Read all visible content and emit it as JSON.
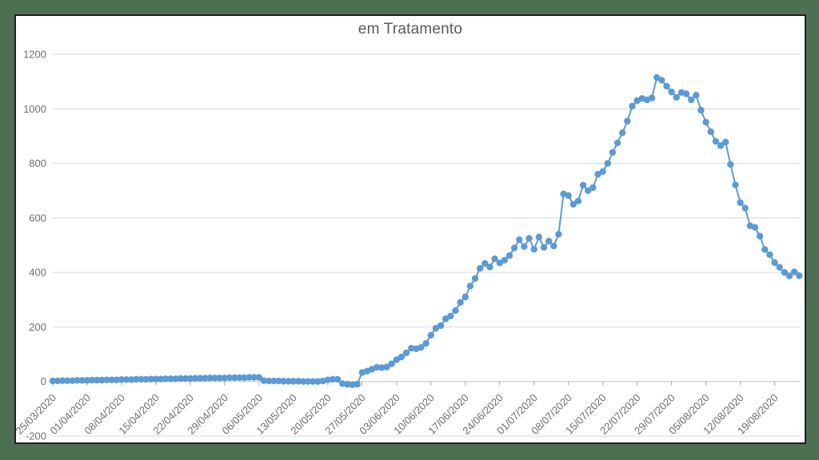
{
  "frame": {
    "background_color": "#4d7053",
    "panel_color": "#ffffff",
    "panel_border_color": "#1f1f1f"
  },
  "chart_data": {
    "type": "line",
    "title": "em Tratamento",
    "title_color": "#595959",
    "series_name": "em Tratamento",
    "series_color": "#5B9BD5",
    "marker": "circle",
    "gridline_color": "#d9d9d9",
    "axis_line_color": "#bfbfbf",
    "tick_color": "#a6a6a6",
    "axis_label_color": "#6e6e6e",
    "x_start": "25/03/2020",
    "x_interval": "daily",
    "x_tick_labels": [
      "25/03/2020",
      "01/04/2020",
      "08/04/2020",
      "15/04/2020",
      "22/04/2020",
      "29/04/2020",
      "06/05/2020",
      "13/05/2020",
      "20/05/2020",
      "27/05/2020",
      "03/06/2020",
      "10/06/2020",
      "17/06/2020",
      "24/06/2020",
      "01/07/2020",
      "08/07/2020",
      "15/07/2020",
      "22/07/2020",
      "29/07/2020",
      "05/08/2020",
      "12/08/2020",
      "19/08/2020"
    ],
    "x_tick_every_days": 7,
    "y_ticks": [
      -200,
      0,
      200,
      400,
      600,
      800,
      1000,
      1200
    ],
    "ylim": [
      -200,
      1200
    ],
    "grid": true,
    "legend": false,
    "values": [
      2,
      2,
      3,
      3,
      3,
      4,
      4,
      4,
      5,
      5,
      5,
      6,
      6,
      6,
      7,
      7,
      7,
      8,
      8,
      8,
      9,
      9,
      9,
      10,
      10,
      10,
      11,
      11,
      11,
      12,
      12,
      12,
      13,
      13,
      13,
      13,
      14,
      14,
      14,
      14,
      15,
      15,
      15,
      3,
      2,
      2,
      2,
      1,
      1,
      1,
      1,
      0,
      0,
      0,
      0,
      2,
      6,
      8,
      8,
      -8,
      -10,
      -12,
      -10,
      33,
      38,
      45,
      52,
      51,
      53,
      65,
      80,
      90,
      105,
      122,
      120,
      125,
      140,
      170,
      195,
      205,
      230,
      240,
      260,
      290,
      310,
      350,
      378,
      415,
      433,
      420,
      450,
      435,
      445,
      462,
      490,
      520,
      495,
      525,
      485,
      530,
      492,
      515,
      497,
      540,
      688,
      682,
      650,
      662,
      720,
      700,
      711,
      760,
      770,
      800,
      840,
      875,
      912,
      955,
      1010,
      1030,
      1038,
      1033,
      1040,
      1115,
      1105,
      1083,
      1062,
      1042,
      1060,
      1055,
      1033,
      1050,
      995,
      951,
      916,
      881,
      865,
      878,
      796,
      721,
      656,
      636,
      571,
      565,
      533,
      484,
      465,
      436,
      419,
      400,
      387,
      402,
      388
    ]
  }
}
